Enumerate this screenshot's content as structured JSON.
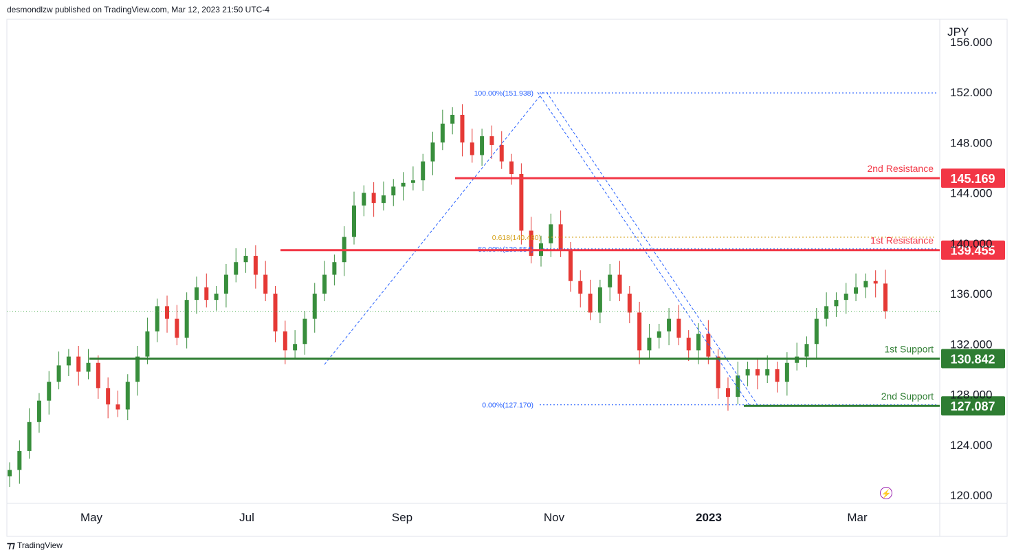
{
  "publisher_line": "desmondlzw published on TradingView.com, Mar 12, 2023 21:50 UTC-4",
  "footer_brand": "TradingView",
  "currency": "JPY",
  "colors": {
    "up": "#26a69a",
    "down": "#ef5350",
    "candle_up": "#388e3c",
    "candle_down": "#e53935",
    "resistance": "#f23645",
    "support": "#2e7d32",
    "fib": "#2962ff",
    "fib_gold": "#d4a017",
    "last_price": "#4caf50"
  },
  "chart_data": {
    "type": "candlestick",
    "ylim": [
      120,
      157
    ],
    "y_ticks": [
      "120.000",
      "124.000",
      "128.000",
      "132.000",
      "136.000",
      "140.000",
      "144.000",
      "148.000",
      "152.000",
      "156.000"
    ],
    "x_ticks": [
      "May",
      "Jul",
      "Sep",
      "Nov",
      "2023",
      "Mar"
    ],
    "last_price": 134.6,
    "levels": [
      {
        "label": "2nd Resistance",
        "value": "145.169",
        "kind": "resistance"
      },
      {
        "label": "1st Resistance",
        "value": "139.455",
        "kind": "resistance"
      },
      {
        "label": "1st Support",
        "value": "130.842",
        "kind": "support"
      },
      {
        "label": "2nd Support",
        "value": "127.087",
        "kind": "support"
      }
    ],
    "fib_levels": [
      {
        "label": "100.00%(151.938)",
        "value": 151.938
      },
      {
        "label": "0.618(140.480)",
        "value": 140.48
      },
      {
        "label": "50.00%(139.554)",
        "value": 139.554
      },
      {
        "label": "0.00%(127.170)",
        "value": 127.17
      }
    ],
    "closes": [
      122.0,
      123.5,
      125.8,
      127.5,
      129.0,
      130.3,
      131.0,
      129.8,
      130.5,
      128.5,
      127.2,
      126.8,
      129.0,
      131.0,
      133.0,
      135.0,
      134.0,
      132.5,
      135.5,
      136.5,
      135.5,
      136.0,
      137.5,
      138.5,
      139.0,
      137.5,
      136.0,
      133.0,
      131.5,
      132.0,
      134.0,
      136.0,
      137.5,
      138.5,
      140.5,
      143.0,
      144.0,
      143.2,
      143.8,
      144.5,
      144.8,
      145.0,
      146.5,
      148.0,
      149.5,
      150.2,
      148.0,
      147.0,
      148.5,
      147.8,
      146.5,
      145.5,
      141.0,
      139.0,
      140.0,
      141.5,
      139.5,
      137.0,
      136.0,
      134.5,
      136.5,
      137.5,
      136.0,
      134.5,
      131.5,
      132.5,
      133.0,
      134.0,
      132.5,
      131.5,
      132.8,
      131.0,
      128.5,
      127.8,
      129.5,
      130.0,
      129.5,
      130.0,
      129.0,
      130.5,
      131.0,
      132.0,
      134.0,
      135.0,
      135.5,
      136.0,
      136.5,
      137.0,
      136.8,
      134.6
    ]
  }
}
